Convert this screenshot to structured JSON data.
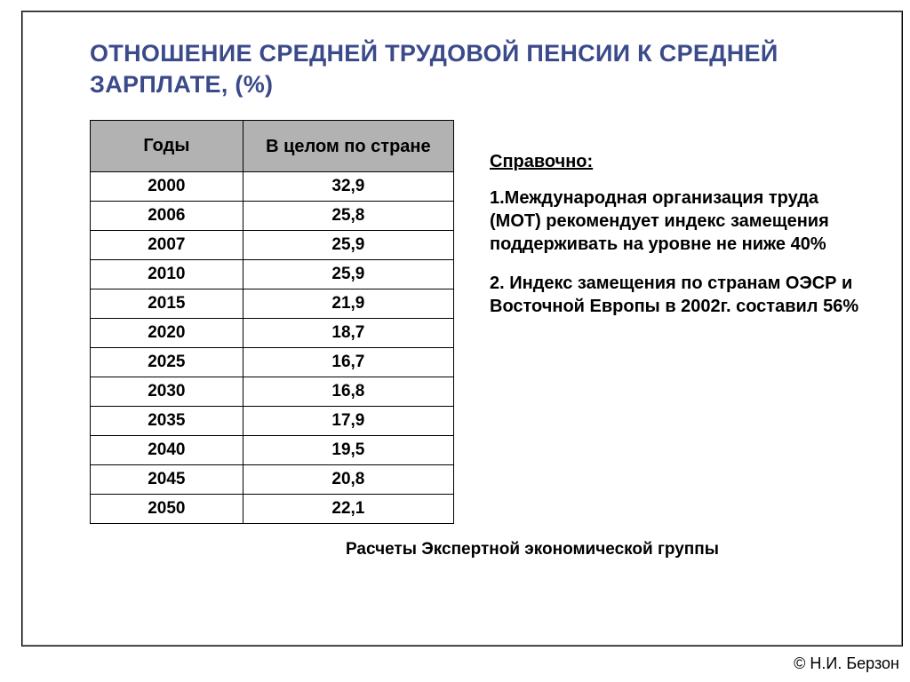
{
  "title": "ОТНОШЕНИЕ СРЕДНЕЙ ТРУДОВОЙ ПЕНСИИ К СРЕДНЕЙ ЗАРПЛАТЕ, (%)",
  "table": {
    "type": "table",
    "columns": [
      "Годы",
      "В целом по стране"
    ],
    "header_bg": "#b2b2b2",
    "border_color": "#000000",
    "header_fontsize": 20,
    "cell_fontsize": 19,
    "rows": [
      [
        "2000",
        "32,9"
      ],
      [
        "2006",
        "25,8"
      ],
      [
        "2007",
        "25,9"
      ],
      [
        "2010",
        "25,9"
      ],
      [
        "2015",
        "21,9"
      ],
      [
        "2020",
        "18,7"
      ],
      [
        "2025",
        "16,7"
      ],
      [
        "2030",
        "16,8"
      ],
      [
        "2035",
        "17,9"
      ],
      [
        "2040",
        "19,5"
      ],
      [
        "2045",
        "20,8"
      ],
      [
        "2050",
        "22,1"
      ]
    ]
  },
  "reference": {
    "heading": "Справочно:",
    "items": [
      "1.Международная организация труда (МОТ) рекомендует индекс замещения поддерживать на уровне не ниже 40%",
      "2. Индекс замещения по странам ОЭСР и Восточной Европы в 2002г. составил 56%"
    ]
  },
  "source_note": "Расчеты Экспертной экономической группы",
  "author": "© Н.И. Берзон",
  "colors": {
    "title_color": "#3a4a8a",
    "text_color": "#000000",
    "header_bg": "#b2b2b2",
    "border": "#000000",
    "background": "#ffffff"
  }
}
